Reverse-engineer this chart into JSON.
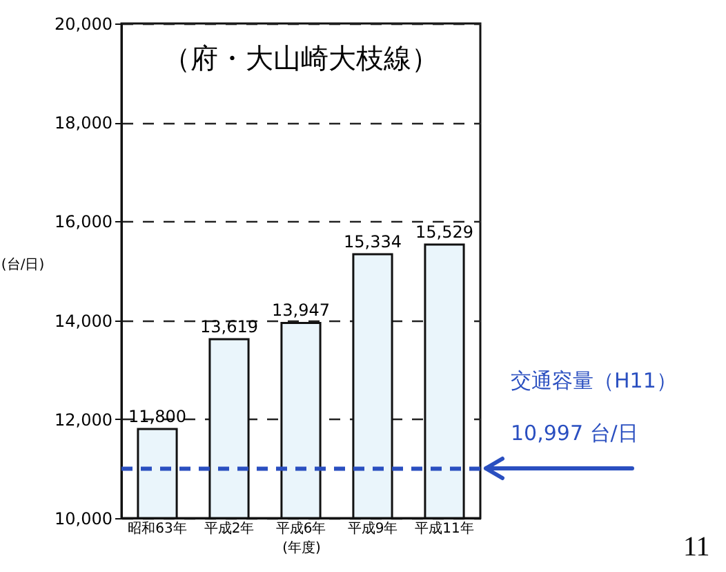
{
  "chart_data": {
    "type": "bar",
    "title": "（府・大山崎大枝線）",
    "xlabel": "(年度)",
    "ylabel": "(台/日)",
    "categories": [
      "昭和63年",
      "平成2年",
      "平成6年",
      "平成9年",
      "平成11年"
    ],
    "values": [
      11800,
      13619,
      13947,
      15334,
      15529
    ],
    "color": "#eaf5fb",
    "value_labels": [
      "11,800",
      "13,619",
      "13,947",
      "15,334",
      "15,529"
    ],
    "ylim": [
      10000,
      20000
    ],
    "yticks": [
      {
        "value": 10000,
        "label": "10,000"
      },
      {
        "value": 12000,
        "label": "12,000"
      },
      {
        "value": 14000,
        "label": "14,000"
      },
      {
        "value": 16000,
        "label": "16,000"
      },
      {
        "value": 18000,
        "label": "18,000"
      },
      {
        "value": 20000,
        "label": "20,000"
      }
    ],
    "grid": "y",
    "ref_lines": [
      {
        "axis": "y",
        "value": 10997,
        "label": "交通容量（H11）",
        "color": "#2a4fc0",
        "line_style": "dashed"
      }
    ],
    "annotations": [
      "10,997 台/日",
      "11"
    ]
  }
}
